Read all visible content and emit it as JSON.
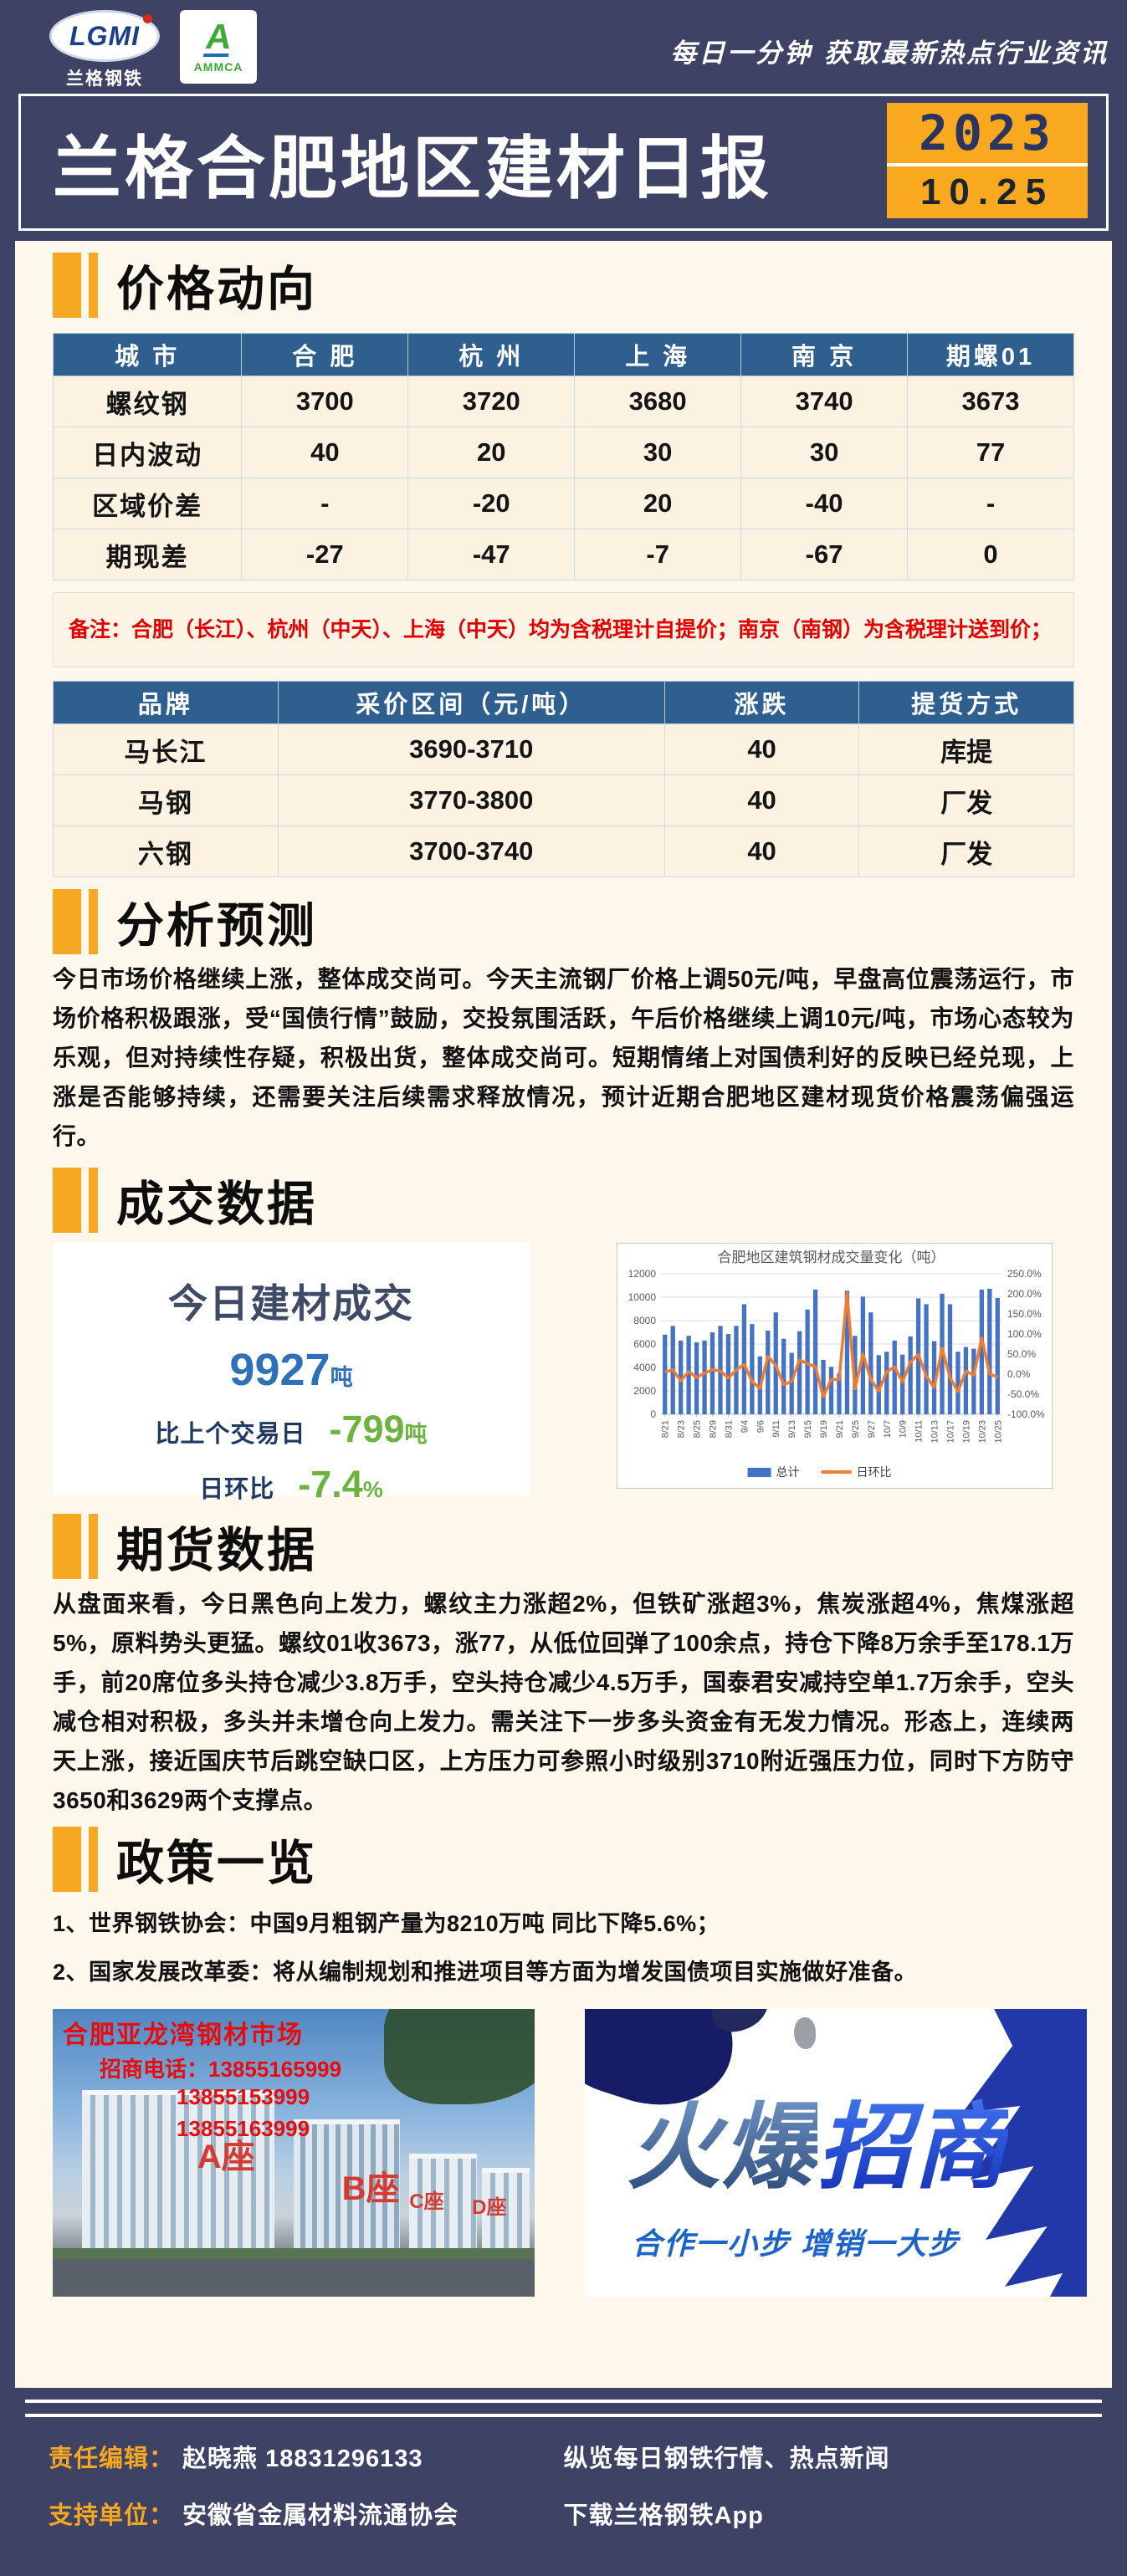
{
  "colors": {
    "page_bg": "#3e4365",
    "content_bg": "#fdf7ec",
    "accent_orange": "#f7a823",
    "table_header_blue": "#2f5f8f",
    "red": "#c00000",
    "green": "#70ad47",
    "bar_blue": "#4472C4",
    "line_orange": "#ED7D31",
    "value_blue": "#2d71b8"
  },
  "header": {
    "logo_lgmi": "LGMI",
    "logo_lgmi_sub": "兰格钢铁",
    "logo_ammca_letter": "A",
    "logo_ammca": "AMMCA",
    "slogan": "每日一分钟  获取最新热点行业资讯"
  },
  "titlebar": {
    "title": "兰格合肥地区建材日报",
    "year": "2023",
    "date": "10.25"
  },
  "sections": {
    "s1": "价格动向",
    "s2": "分析预测",
    "s3": "成交数据",
    "s4": "期货数据",
    "s5": "政策一览"
  },
  "price_table": {
    "headers": [
      "城 市",
      "合 肥",
      "杭 州",
      "上 海",
      "南 京",
      "期螺01"
    ],
    "rows": [
      {
        "label": "螺纹钢",
        "cells": [
          {
            "t": "3700",
            "c": "dark"
          },
          {
            "t": "3720",
            "c": "dark"
          },
          {
            "t": "3680",
            "c": "dark"
          },
          {
            "t": "3740",
            "c": "dark"
          },
          {
            "t": "3673",
            "c": "dark"
          }
        ]
      },
      {
        "label": "日内波动",
        "cells": [
          {
            "t": "40",
            "c": "red"
          },
          {
            "t": "20",
            "c": "red"
          },
          {
            "t": "30",
            "c": "red"
          },
          {
            "t": "30",
            "c": "red"
          },
          {
            "t": "77",
            "c": "red"
          }
        ]
      },
      {
        "label": "区域价差",
        "cells": [
          {
            "t": "-",
            "c": "dark"
          },
          {
            "t": "-20",
            "c": "green"
          },
          {
            "t": "20",
            "c": "red"
          },
          {
            "t": "-40",
            "c": "green"
          },
          {
            "t": "-",
            "c": "dark"
          }
        ]
      },
      {
        "label": "期现差",
        "cells": [
          {
            "t": "-27",
            "c": "green"
          },
          {
            "t": "-47",
            "c": "green"
          },
          {
            "t": "-7",
            "c": "green"
          },
          {
            "t": "-67",
            "c": "green"
          },
          {
            "t": "0",
            "c": "dark"
          }
        ]
      }
    ]
  },
  "price_note": "备注：合肥（长江）、杭州（中天）、上海（中天）均为含税理计自提价；南京（南钢）为含税理计送到价；",
  "brand_table": {
    "headers": [
      "品牌",
      "采价区间（元/吨）",
      "涨跌",
      "提货方式"
    ],
    "rows": [
      {
        "label": "马长江",
        "cells": [
          {
            "t": "3690-3710",
            "c": "dark"
          },
          {
            "t": "40",
            "c": "red"
          },
          {
            "t": "库提",
            "c": "dark"
          }
        ]
      },
      {
        "label": "马钢",
        "cells": [
          {
            "t": "3770-3800",
            "c": "dark"
          },
          {
            "t": "40",
            "c": "red"
          },
          {
            "t": "厂发",
            "c": "dark"
          }
        ]
      },
      {
        "label": "六钢",
        "cells": [
          {
            "t": "3700-3740",
            "c": "dark"
          },
          {
            "t": "40",
            "c": "red"
          },
          {
            "t": "厂发",
            "c": "dark"
          }
        ]
      }
    ]
  },
  "analysis_text": "今日市场价格继续上涨，整体成交尚可。今天主流钢厂价格上调50元/吨，早盘高位震荡运行，市场价格积极跟涨，受“国债行情”鼓励，交投氛围活跃，午后价格继续上调10元/吨，市场心态较为乐观，但对持续性存疑，积极出货，整体成交尚可。短期情绪上对国债利好的反映已经兑现，上涨是否能够持续，还需要关注后续需求释放情况，预计近期合肥地区建材现货价格震荡偏强运行。",
  "deal_card": {
    "title": "今日建材成交",
    "volume": "9927",
    "volume_unit": "吨",
    "row1_label": "比上个交易日",
    "row1_value": "-799",
    "row1_unit": "吨",
    "row2_label": "日环比",
    "row2_value": "-7.4",
    "row2_unit": "%"
  },
  "chart_data": {
    "type": "bar+line",
    "title": "合肥地区建筑钢材成交量变化（吨）",
    "legend_position": "bottom",
    "y_left": {
      "min": 0,
      "max": 12000,
      "step": 2000
    },
    "y_right": {
      "min": -100,
      "max": 250,
      "step": 50,
      "format": "percent"
    },
    "categories": [
      "8/21",
      "",
      "8/23",
      "",
      "8/25",
      "",
      "8/29",
      "",
      "8/31",
      "",
      "9/4",
      "",
      "9/6",
      "",
      "9/11",
      "",
      "9/13",
      "",
      "9/15",
      "",
      "9/19",
      "",
      "9/21",
      "",
      "9/25",
      "",
      "9/27",
      "",
      "10/7",
      "",
      "10/9",
      "",
      "10/11",
      "",
      "10/13",
      "",
      "10/17",
      "",
      "10/19",
      "",
      "10/23",
      "",
      "10/25"
    ],
    "series": [
      {
        "name": "总计",
        "type": "bar",
        "color": "#4472C4",
        "values": [
          6800,
          7550,
          6300,
          6700,
          6150,
          6300,
          7000,
          7550,
          6850,
          7550,
          9400,
          7700,
          4950,
          7150,
          8700,
          6450,
          5250,
          7100,
          8950,
          10650,
          4650,
          4050,
          3500,
          10550,
          6700,
          10050,
          8700,
          5050,
          5350,
          6300,
          5100,
          6650,
          9900,
          9400,
          6250,
          10300,
          9400,
          5350,
          5750,
          5600,
          10650,
          10726,
          9927
        ]
      },
      {
        "name": "日环比",
        "type": "line",
        "color": "#ED7D31",
        "values": [
          5.0,
          11.0,
          -16.6,
          6.3,
          -8.2,
          2.4,
          11.1,
          7.9,
          -9.3,
          10.2,
          24.5,
          -18.1,
          -35.7,
          44.4,
          21.7,
          -25.9,
          -18.6,
          35.2,
          26.1,
          19.0,
          -56.3,
          -12.9,
          -13.6,
          201.4,
          -36.5,
          50.0,
          -13.4,
          -42.0,
          5.9,
          17.8,
          -19.0,
          30.4,
          48.9,
          -5.1,
          -33.5,
          64.8,
          -8.7,
          -43.1,
          7.5,
          -2.6,
          90.2,
          0.7,
          -7.4
        ]
      }
    ]
  },
  "futures_text": "从盘面来看，今日黑色向上发力，螺纹主力涨超2%，但铁矿涨超3%，焦炭涨超4%，焦煤涨超5%，原料势头更猛。螺纹01收3673，涨77，从低位回弹了100余点，持仓下降8万余手至178.1万手，前20席位多头持仓减少3.8万手，空头持仓减少4.5万手，国泰君安减持空单1.7万余手，空头减仓相对积极，多头并未增仓向上发力。需关注下一步多头资金有无发力情况。形态上，连续两天上涨，接近国庆节后跳空缺口区，上方压力可参照小时级别3710附近强压力位，同时下方防守3650和3629两个支撑点。",
  "policy_items": [
    "1、世界钢铁协会：中国9月粗钢产量为8210万吨 同比下降5.6%；",
    "2、国家发展改革委：将从编制规划和推进项目等方面为增发国债项目实施做好准备。"
  ],
  "ad_left": {
    "title": "合肥亚龙湾钢材市场",
    "phone_label": "招商电话：",
    "phones": [
      "13855165999",
      "13855153999",
      "13855163999"
    ],
    "buildings": [
      "A座",
      "B座",
      "C座",
      "D座"
    ]
  },
  "ad_right": {
    "word1": "火爆",
    "word2": "招商",
    "subtitle": "合作一小步  增销一大步"
  },
  "footer": {
    "editor_label": "责任编辑：",
    "editor": "赵晓燕 18831296133",
    "support_label": "支持单位：",
    "support": "安徽省金属材料流通协会",
    "right1": "纵览每日钢铁行情、热点新闻",
    "right2": "下载兰格钢铁App"
  }
}
